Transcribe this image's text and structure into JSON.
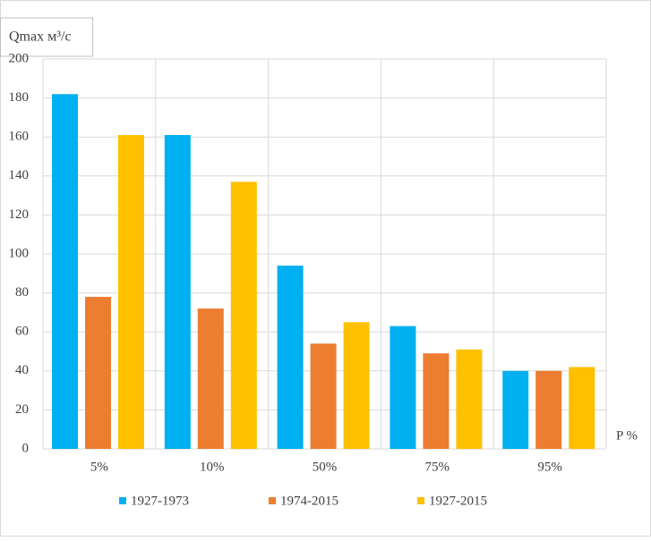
{
  "chart_data": {
    "type": "bar",
    "y_label": "Qmax м³/с",
    "x_label": "P %",
    "categories": [
      "5%",
      "10%",
      "50%",
      "75%",
      "95%"
    ],
    "series": [
      {
        "name": "1927-1973",
        "color": "#00b0f0",
        "values": [
          182,
          161,
          94,
          63,
          40
        ]
      },
      {
        "name": "1974-2015",
        "color": "#ed7d31",
        "values": [
          78,
          72,
          54,
          49,
          40
        ]
      },
      {
        "name": "1927-2015",
        "color": "#ffc000",
        "values": [
          161,
          137,
          65,
          51,
          42
        ]
      }
    ],
    "ylim": [
      0,
      200
    ],
    "yticks": [
      0,
      20,
      40,
      60,
      80,
      100,
      120,
      140,
      160,
      180,
      200
    ],
    "grid": true,
    "legend": "bottom"
  }
}
